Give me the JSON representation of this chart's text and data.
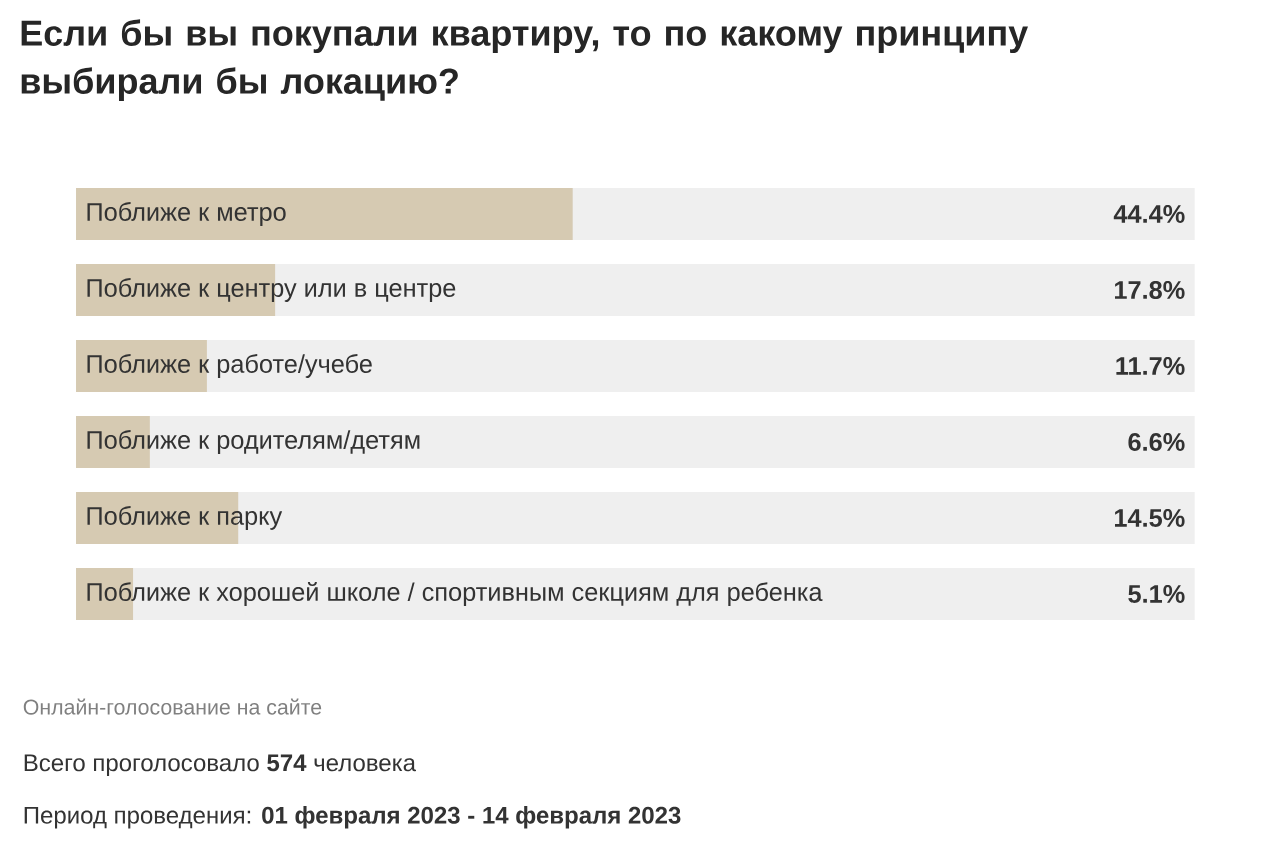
{
  "chart_data": {
    "type": "bar",
    "orientation": "horizontal",
    "title": "Если бы вы покупали квартиру, то по какому принципу выбирали бы локацию?",
    "categories": [
      "Поближе к метро",
      "Поближе к центру или в центре",
      "Поближе к работе/учебе",
      "Поближе к родителям/детям",
      "Поближе к парку",
      "Поближе к хорошей школе / спортивным секциям для ребенка"
    ],
    "values": [
      44.4,
      17.8,
      11.7,
      6.6,
      14.5,
      5.1
    ],
    "value_labels": [
      "44.4%",
      "17.8%",
      "11.7%",
      "6.6%",
      "14.5%",
      "5.1%"
    ],
    "color": "#d6cab2",
    "xlim": [
      0,
      100
    ],
    "annotations": [
      "Онлайн-голосование на сайте",
      "Всего проголосовало **574** человека",
      "Период проведения: **01 февраля 2023 - 14 февраля 2023**"
    ]
  }
}
